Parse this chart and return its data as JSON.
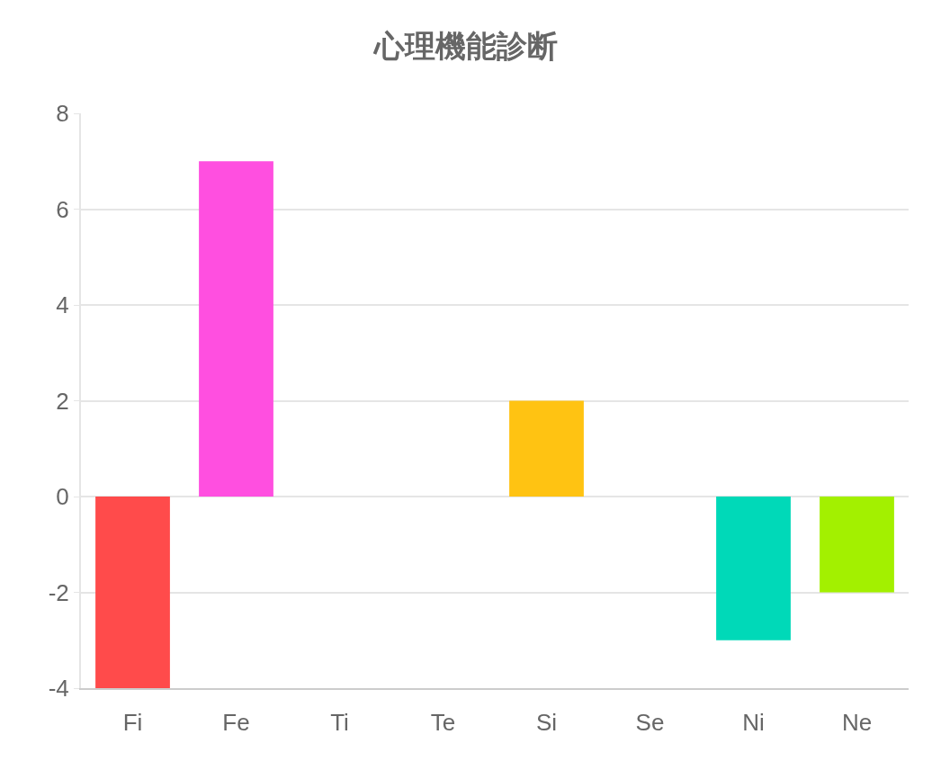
{
  "chart_data": {
    "type": "bar",
    "title": "心理機能診断",
    "categories": [
      "Fi",
      "Fe",
      "Ti",
      "Te",
      "Si",
      "Se",
      "Ni",
      "Ne"
    ],
    "values": [
      -4,
      7,
      0,
      0,
      2,
      0,
      -3,
      -2
    ],
    "colors": [
      "#ff4b4b",
      "#ff4fe0",
      null,
      null,
      "#ffc312",
      null,
      "#00d9b8",
      "#a3f000"
    ],
    "ylim": [
      -4,
      8
    ],
    "yticks": [
      -4,
      -2,
      0,
      2,
      4,
      6,
      8
    ],
    "grid": "y",
    "legend": false
  }
}
